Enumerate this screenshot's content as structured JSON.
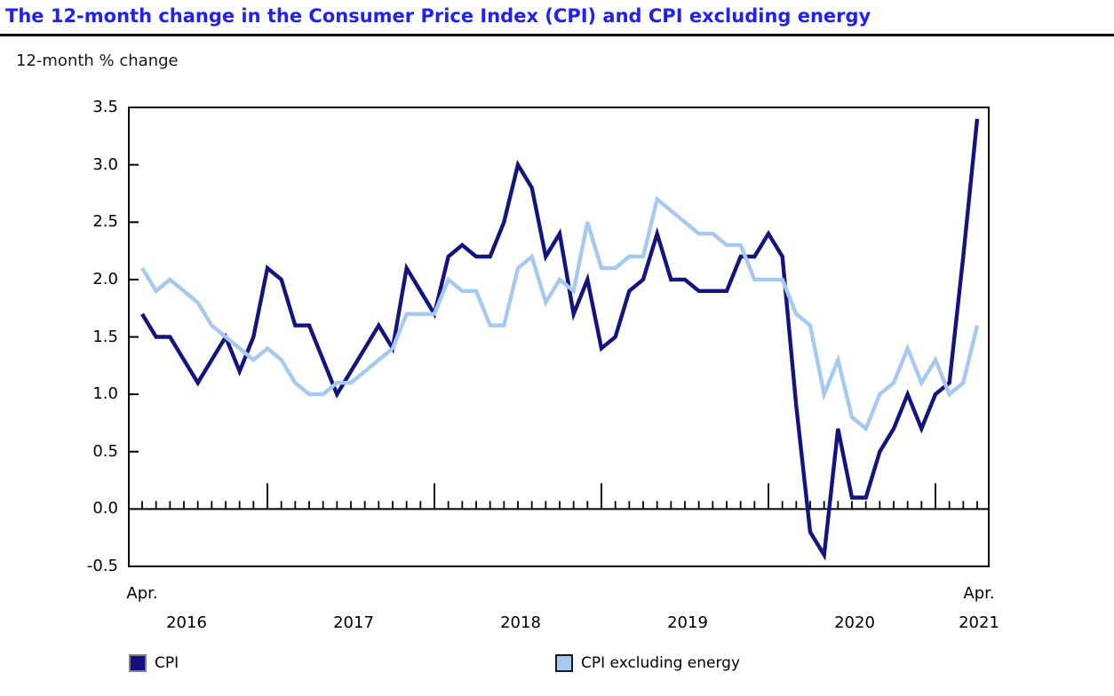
{
  "title": "The 12-month change in the Consumer Price Index (CPI) and CPI excluding energy",
  "unit_label": "12-month % change",
  "colors": {
    "title_blue": "#2222ee",
    "axis_black": "#000000",
    "cpi_line": "#14147e",
    "cpi_ex_energy_line": "#a6c9f1",
    "legend_cpi_fill": "#10107e",
    "legend_cpi_border": "#7f7f7f",
    "legend_ex_fill": "#a6c9f1",
    "legend_ex_border": "#1a1a1a"
  },
  "legend": {
    "items": [
      {
        "label": "CPI",
        "fill": "#10107e",
        "border": "#7f7f7f"
      },
      {
        "label": "CPI excluding energy",
        "fill": "#a6c9f1",
        "border": "#1a1a1a"
      }
    ]
  },
  "x_axis": {
    "start_label": "Apr.",
    "end_label": "Apr.",
    "year_labels": [
      "2016",
      "2017",
      "2018",
      "2019",
      "2020",
      "2021"
    ]
  },
  "chart_data": {
    "type": "line",
    "title": "The 12-month change in the Consumer Price Index (CPI) and CPI excluding energy",
    "ylabel": "12-month % change",
    "ylim": [
      -0.5,
      3.5
    ],
    "yticks": [
      "3.5",
      "3.0",
      "2.5",
      "2.0",
      "1.5",
      "1.0",
      "0.5",
      "0.0",
      "-0.5"
    ],
    "grid": false,
    "legend_position": "bottom",
    "x": [
      "2016-04",
      "2016-05",
      "2016-06",
      "2016-07",
      "2016-08",
      "2016-09",
      "2016-10",
      "2016-11",
      "2016-12",
      "2017-01",
      "2017-02",
      "2017-03",
      "2017-04",
      "2017-05",
      "2017-06",
      "2017-07",
      "2017-08",
      "2017-09",
      "2017-10",
      "2017-11",
      "2017-12",
      "2018-01",
      "2018-02",
      "2018-03",
      "2018-04",
      "2018-05",
      "2018-06",
      "2018-07",
      "2018-08",
      "2018-09",
      "2018-10",
      "2018-11",
      "2018-12",
      "2019-01",
      "2019-02",
      "2019-03",
      "2019-04",
      "2019-05",
      "2019-06",
      "2019-07",
      "2019-08",
      "2019-09",
      "2019-10",
      "2019-11",
      "2019-12",
      "2020-01",
      "2020-02",
      "2020-03",
      "2020-04",
      "2020-05",
      "2020-06",
      "2020-07",
      "2020-08",
      "2020-09",
      "2020-10",
      "2020-11",
      "2020-12",
      "2021-01",
      "2021-02",
      "2021-03",
      "2021-04"
    ],
    "series": [
      {
        "name": "CPI",
        "color": "#14147e",
        "values": [
          1.7,
          1.5,
          1.5,
          1.3,
          1.1,
          1.3,
          1.5,
          1.2,
          1.5,
          2.1,
          2.0,
          1.6,
          1.6,
          1.3,
          1.0,
          1.2,
          1.4,
          1.6,
          1.4,
          2.1,
          1.9,
          1.7,
          2.2,
          2.3,
          2.2,
          2.2,
          2.5,
          3.0,
          2.8,
          2.2,
          2.4,
          1.7,
          2.0,
          1.4,
          1.5,
          1.9,
          2.0,
          2.4,
          2.0,
          2.0,
          1.9,
          1.9,
          1.9,
          2.2,
          2.2,
          2.4,
          2.2,
          0.9,
          -0.2,
          -0.4,
          0.7,
          0.1,
          0.1,
          0.5,
          0.7,
          1.0,
          0.7,
          1.0,
          1.1,
          2.2,
          3.4
        ]
      },
      {
        "name": "CPI excluding energy",
        "color": "#a6c9f1",
        "values": [
          2.1,
          1.9,
          2.0,
          1.9,
          1.8,
          1.6,
          1.5,
          1.4,
          1.3,
          1.4,
          1.3,
          1.1,
          1.0,
          1.0,
          1.1,
          1.1,
          1.2,
          1.3,
          1.4,
          1.7,
          1.7,
          1.7,
          2.0,
          1.9,
          1.9,
          1.6,
          1.6,
          2.1,
          2.2,
          1.8,
          2.0,
          1.9,
          2.5,
          2.1,
          2.1,
          2.2,
          2.2,
          2.7,
          2.6,
          2.5,
          2.4,
          2.4,
          2.3,
          2.3,
          2.0,
          2.0,
          2.0,
          1.7,
          1.6,
          1.0,
          1.3,
          0.8,
          0.7,
          1.0,
          1.1,
          1.4,
          1.1,
          1.3,
          1.0,
          1.1,
          1.6
        ]
      }
    ]
  }
}
